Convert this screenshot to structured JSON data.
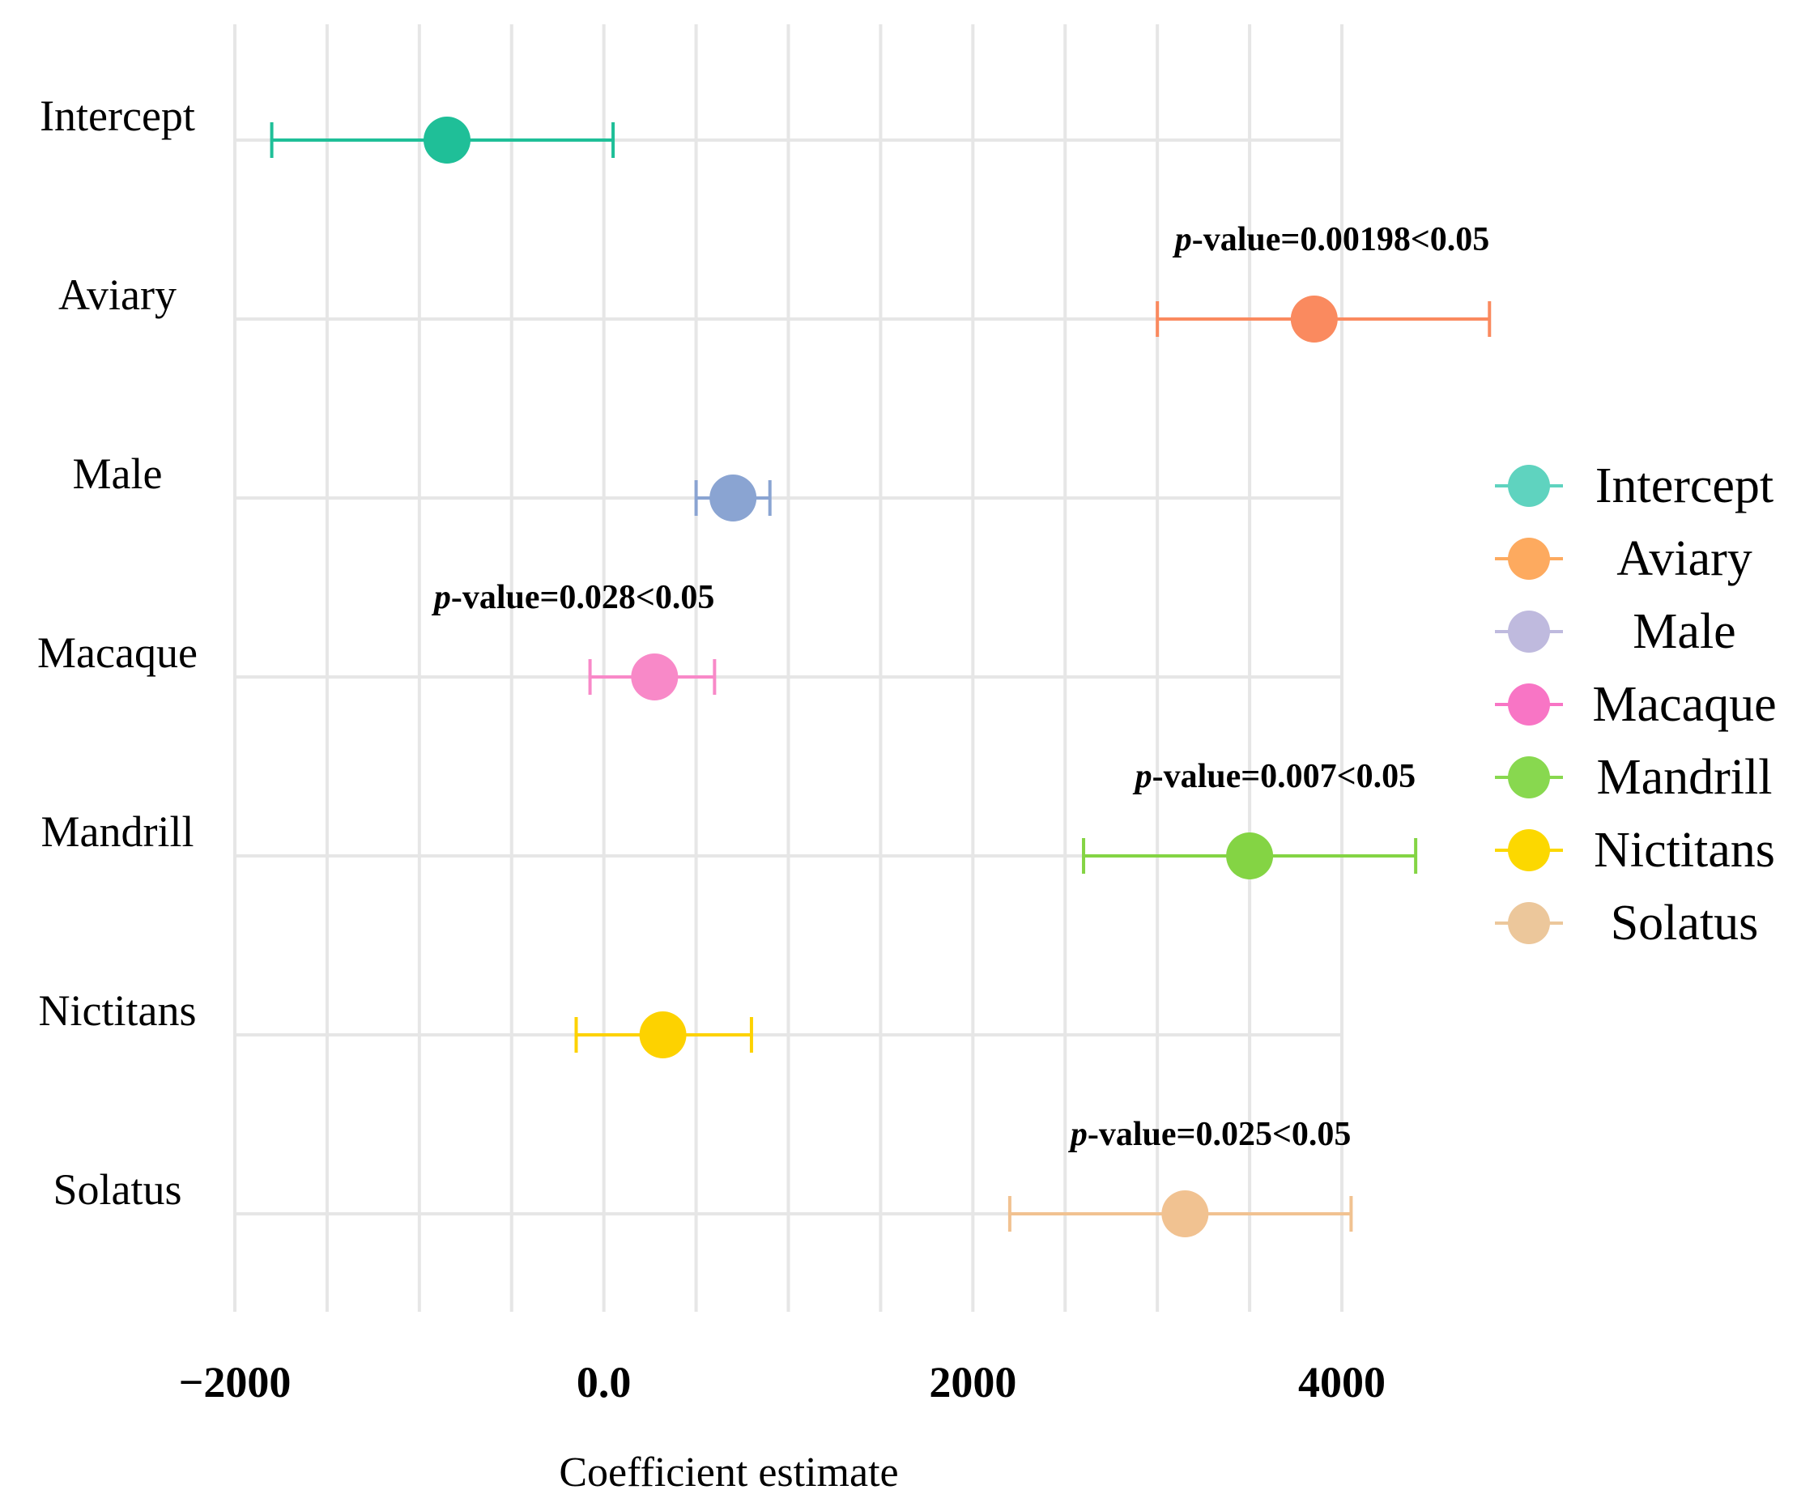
{
  "chart_data": {
    "type": "forest",
    "xlabel": "Coefficient estimate",
    "xlim": [
      -2000,
      4000
    ],
    "x_ticks": [
      -2000,
      0,
      2000,
      4000
    ],
    "x_tick_labels": [
      "−2000",
      "0.0",
      "2000",
      "4000"
    ],
    "grid": true,
    "legend_position": "right",
    "points": [
      {
        "name": "Intercept",
        "estimate": -850,
        "low": -1800,
        "high": 50,
        "color": "#1fbf98",
        "legend_color": "#5fd3bf",
        "annotation": null
      },
      {
        "name": "Aviary",
        "estimate": 3850,
        "low": 3000,
        "high": 4800,
        "color": "#fa8a5f",
        "legend_color": "#fdaa5f",
        "annotation": {
          "prefix": "p",
          "text": "-value=0.00198<0.05"
        }
      },
      {
        "name": "Male",
        "estimate": 700,
        "low": 500,
        "high": 900,
        "color": "#8aa4d2",
        "legend_color": "#bfbade",
        "annotation": null
      },
      {
        "name": "Macaque",
        "estimate": 275,
        "low": -75,
        "high": 600,
        "color": "#f889c8",
        "legend_color": "#f875c5",
        "annotation": {
          "prefix": "p",
          "text": "-value=0.028<0.05"
        }
      },
      {
        "name": "Mandrill",
        "estimate": 3500,
        "low": 2600,
        "high": 4400,
        "color": "#84d444",
        "legend_color": "#88d84f",
        "annotation": {
          "prefix": "p",
          "text": "-value=0.007<0.05"
        }
      },
      {
        "name": "Nictitans",
        "estimate": 320,
        "low": -150,
        "high": 800,
        "color": "#fdd200",
        "legend_color": "#fcd800",
        "annotation": null
      },
      {
        "name": "Solatus",
        "estimate": 3150,
        "low": 2200,
        "high": 4050,
        "color": "#f1c291",
        "legend_color": "#ecc79b",
        "annotation": {
          "prefix": "p",
          "text": "-value=0.025<0.05"
        }
      }
    ]
  }
}
